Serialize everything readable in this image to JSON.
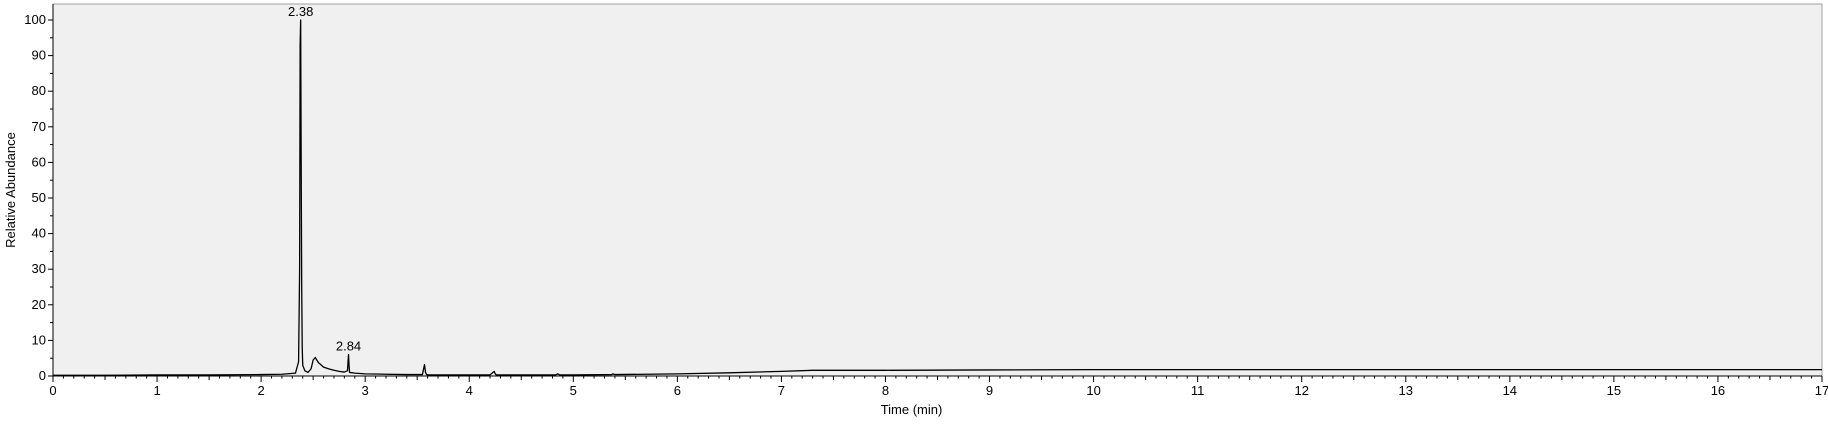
{
  "chart_data": {
    "type": "line",
    "title": "",
    "xlabel": "Time (min)",
    "ylabel": "Relative Abundance",
    "xlim": [
      0,
      17
    ],
    "ylim": [
      0,
      100
    ],
    "x_ticks": [
      "0",
      "1",
      "2",
      "3",
      "4",
      "5",
      "6",
      "7",
      "8",
      "9",
      "10",
      "11",
      "12",
      "13",
      "14",
      "15",
      "16",
      "17"
    ],
    "y_ticks": [
      "0",
      "10",
      "20",
      "30",
      "40",
      "50",
      "60",
      "70",
      "80",
      "90",
      "100"
    ],
    "grid": false,
    "legend": "none",
    "plot_background": "#f0f0f0",
    "line_color": "#000000",
    "annotations": [
      {
        "label": "2.38",
        "x": 2.38,
        "y": 100
      },
      {
        "label": "2.84",
        "x": 2.84,
        "y": 6
      }
    ],
    "series": [
      {
        "x": [
          0,
          0.5,
          1.0,
          1.5,
          2.0,
          2.2,
          2.33,
          2.36,
          2.37,
          2.375,
          2.38,
          2.385,
          2.39,
          2.395,
          2.4,
          2.42,
          2.45,
          2.48,
          2.5,
          2.52,
          2.55,
          2.6,
          2.65,
          2.7,
          2.75,
          2.8,
          2.83,
          2.835,
          2.84,
          2.845,
          2.85,
          2.9,
          3.0,
          3.2,
          3.4,
          3.55,
          3.57,
          3.58,
          3.59,
          3.61,
          3.8,
          4.0,
          4.2,
          4.24,
          4.25,
          4.26,
          4.3,
          4.6,
          4.83,
          4.85,
          4.87,
          5.0,
          5.37,
          5.38,
          5.4,
          5.7,
          6.0,
          6.5,
          7.0,
          7.3,
          8.0,
          9.0,
          10.0,
          11.0,
          12.0,
          13.0,
          14.0,
          15.0,
          16.0,
          17.0
        ],
        "y": [
          0.2,
          0.2,
          0.3,
          0.3,
          0.4,
          0.5,
          0.8,
          4,
          30,
          93,
          100,
          60,
          25,
          8,
          3,
          1.5,
          1.0,
          2.0,
          4.5,
          5.2,
          3.8,
          2.5,
          2.0,
          1.6,
          1.3,
          1.1,
          1.5,
          4,
          6,
          3,
          1.0,
          0.8,
          0.6,
          0.5,
          0.4,
          0.4,
          3.2,
          1.0,
          0.4,
          0.3,
          0.3,
          0.3,
          0.3,
          1.3,
          0.6,
          0.3,
          0.3,
          0.3,
          0.3,
          0.6,
          0.3,
          0.3,
          0.4,
          0.6,
          0.4,
          0.5,
          0.6,
          0.9,
          1.3,
          1.6,
          1.6,
          1.7,
          1.8,
          1.8,
          1.8,
          1.8,
          1.8,
          1.8,
          1.8,
          1.8
        ]
      }
    ]
  }
}
